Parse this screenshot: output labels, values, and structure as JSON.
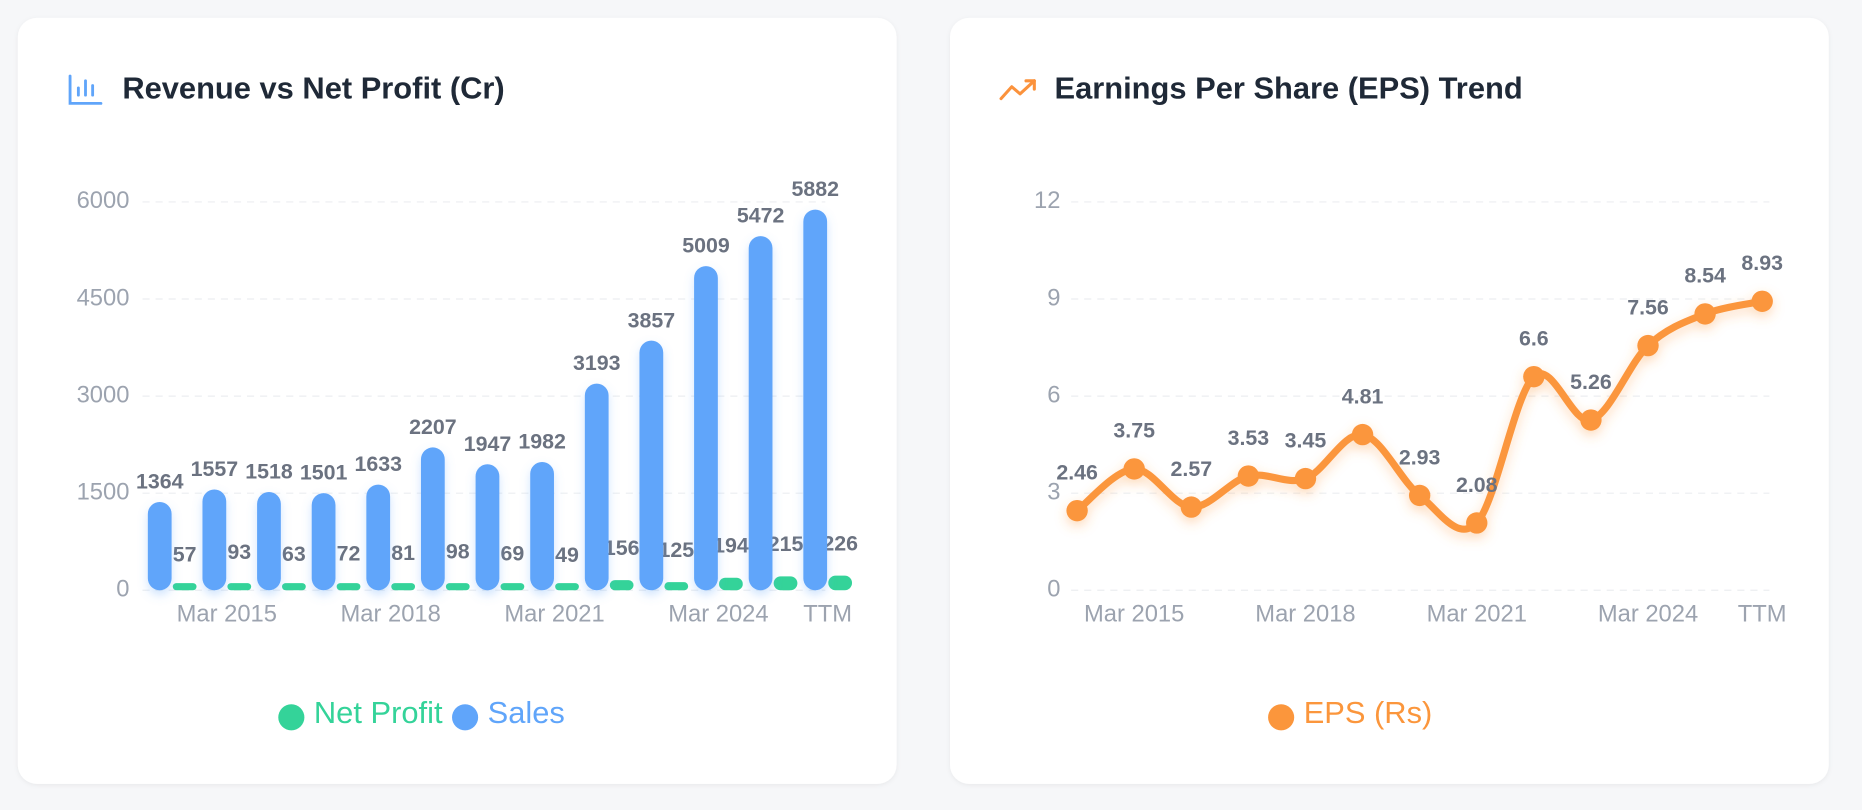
{
  "chart_data": [
    {
      "type": "bar",
      "title": "Revenue vs Net Profit (Cr)",
      "categories": [
        null,
        "Mar 2015",
        null,
        null,
        "Mar 2018",
        null,
        null,
        "Mar 2021",
        null,
        null,
        "Mar 2024",
        null,
        "TTM"
      ],
      "series": [
        {
          "name": "Net Profit",
          "color": "#34d399",
          "values": [
            57,
            93,
            63,
            72,
            81,
            98,
            69,
            49,
            156,
            125,
            194,
            215,
            226
          ]
        },
        {
          "name": "Sales",
          "color": "#60a5fa",
          "values": [
            1364,
            1557,
            1518,
            1501,
            1633,
            2207,
            1947,
            1982,
            3193,
            3857,
            5009,
            5472,
            5882
          ]
        }
      ],
      "ylim": [
        0,
        6000
      ],
      "yticks": [
        0,
        1500,
        3000,
        4500,
        6000
      ],
      "grid": true,
      "legend": "bottom"
    },
    {
      "type": "line",
      "title": "Earnings Per Share (EPS) Trend",
      "categories": [
        null,
        "Mar 2015",
        null,
        null,
        "Mar 2018",
        null,
        null,
        "Mar 2021",
        null,
        null,
        "Mar 2024",
        null,
        "TTM"
      ],
      "series": [
        {
          "name": "EPS (Rs)",
          "color": "#fb963c",
          "values": [
            2.46,
            3.75,
            2.57,
            3.53,
            3.45,
            4.81,
            2.93,
            2.08,
            6.6,
            5.26,
            7.56,
            8.54,
            8.93
          ]
        }
      ],
      "ylim": [
        0,
        12
      ],
      "yticks": [
        0,
        3,
        6,
        9,
        12
      ],
      "grid": true,
      "legend": "bottom"
    }
  ]
}
